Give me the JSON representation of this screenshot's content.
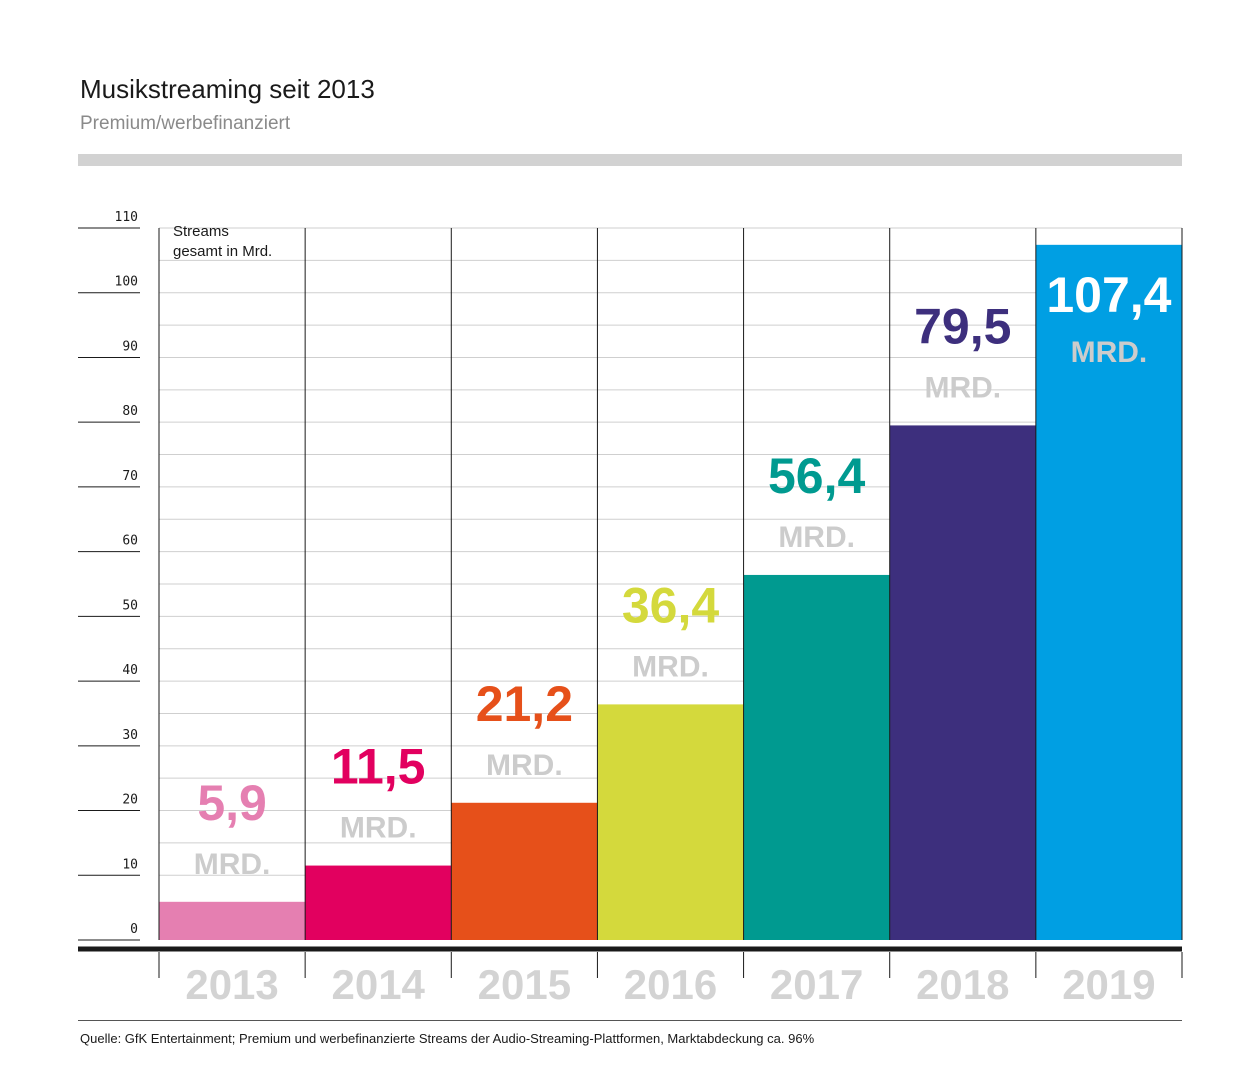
{
  "chart_data": {
    "type": "bar",
    "title": "Musikstreaming seit 2013",
    "subtitle": "Premium/werbefinanziert",
    "ylabel_line1": "Streams",
    "ylabel_line2": "gesamt in Mrd.",
    "ylim": [
      0,
      110
    ],
    "yticks": [
      "0",
      "10",
      "20",
      "30",
      "40",
      "50",
      "60",
      "70",
      "80",
      "90",
      "100",
      "110"
    ],
    "categories": [
      "2013",
      "2014",
      "2015",
      "2016",
      "2017",
      "2018",
      "2019"
    ],
    "values": [
      5.9,
      11.5,
      21.2,
      36.4,
      56.4,
      79.5,
      107.4
    ],
    "value_labels": [
      "5,9",
      "11,5",
      "21,2",
      "36,4",
      "56,4",
      "79,5",
      "107,4"
    ],
    "unit_label": "MRD.",
    "colors": [
      "#e57fb1",
      "#e2005f",
      "#e6501a",
      "#d4d93c",
      "#009a90",
      "#3d2f7d",
      "#009fe3"
    ],
    "value_label_colors": [
      "#e57fb1",
      "#e2005f",
      "#e6501a",
      "#d4d93c",
      "#009a90",
      "#3d2f7d",
      "#ffffff"
    ],
    "unit_label_colors": [
      "#cccccc",
      "#cccccc",
      "#cccccc",
      "#cccccc",
      "#cccccc",
      "#cccccc",
      "#cccccc"
    ]
  },
  "source": "Quelle: GfK Entertainment; Premium und werbefinanzierte Streams der Audio-Streaming-Plattformen, Marktabdeckung ca. 96%"
}
